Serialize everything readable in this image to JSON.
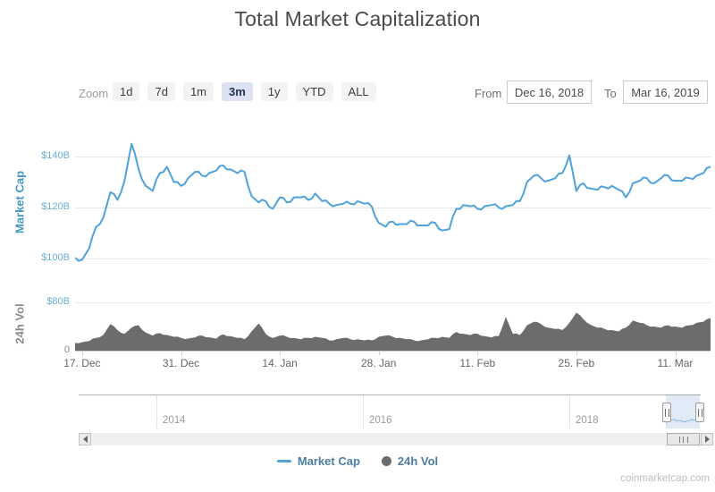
{
  "title": "Total Market Capitalization",
  "credit": "coinmarketcap.com",
  "colors": {
    "market_cap_line": "#4fa3da",
    "volume_fill": "#6c6c6c",
    "axis_label_blue": "#69aed5",
    "axis_title_blue": "#4498c5",
    "axis_label_gray": "#8a8a8a",
    "legend_text": "#4c7ea4",
    "selected_button_bg": "#dce2f3",
    "selected_button_text": "#233258",
    "navigator_selection": "#d6e2f3",
    "gridline": "#e7e7e7"
  },
  "controls": {
    "zoom_label": "Zoom",
    "buttons": [
      {
        "label": "1d",
        "selected": false
      },
      {
        "label": "7d",
        "selected": false
      },
      {
        "label": "1m",
        "selected": false
      },
      {
        "label": "3m",
        "selected": true
      },
      {
        "label": "1y",
        "selected": false
      },
      {
        "label": "YTD",
        "selected": false
      },
      {
        "label": "ALL",
        "selected": false
      }
    ],
    "from_label": "From",
    "from_value": "Dec 16, 2018",
    "to_label": "To",
    "to_value": "Mar 16, 2019"
  },
  "navigator": {
    "years": [
      "2014",
      "2016",
      "2018"
    ]
  },
  "legend": {
    "items": [
      {
        "label": "Market Cap",
        "symbol": "line"
      },
      {
        "label": "24h Vol",
        "symbol": "circle"
      }
    ]
  },
  "chart_data": {
    "type": "line+area",
    "title": "Total Market Capitalization",
    "start_date": "2018-12-16",
    "end_date": "2019-03-16",
    "interval": "1d",
    "x_ticks": [
      {
        "label": "17. Dec",
        "day": 1
      },
      {
        "label": "31. Dec",
        "day": 15
      },
      {
        "label": "14. Jan",
        "day": 29
      },
      {
        "label": "28. Jan",
        "day": 43
      },
      {
        "label": "11. Feb",
        "day": 57
      },
      {
        "label": "25. Feb",
        "day": 71
      },
      {
        "label": "11. Mar",
        "day": 85
      }
    ],
    "panes": [
      {
        "name": "Market Cap",
        "type": "line",
        "unit": "$B",
        "ylim": [
          95,
          150
        ],
        "yticks": [
          140,
          120,
          100
        ],
        "y_tick_labels": [
          "$140B",
          "$120B",
          "$100B"
        ],
        "values": [
          100.3,
          99.5,
          104,
          112.5,
          116,
          126,
          123,
          130.5,
          145,
          135,
          128.5,
          126.5,
          133.5,
          136,
          130,
          128.5,
          131.5,
          134,
          132.5,
          133.5,
          134.5,
          136.5,
          135,
          133.5,
          134,
          124.5,
          122,
          122.5,
          119.5,
          124,
          122,
          124,
          124,
          123,
          125.5,
          122.5,
          121.5,
          121,
          121.5,
          121.5,
          122.5,
          121.5,
          120.5,
          114,
          112.5,
          114.5,
          113.5,
          113.5,
          114.5,
          113,
          113,
          114,
          111,
          111.5,
          119.5,
          121,
          120.5,
          119.5,
          120.5,
          121,
          120,
          120.5,
          121,
          122.5,
          130,
          132.5,
          131.5,
          130.5,
          131.5,
          133.5,
          140.5,
          126.5,
          129.5,
          127.5,
          127,
          128,
          128.5,
          127,
          124,
          129.5,
          130.5,
          131.5,
          129.5,
          131.5,
          132.5,
          130.5,
          130.5,
          131.5,
          132.5,
          133.5,
          136
        ]
      },
      {
        "name": "24h Vol",
        "type": "area",
        "unit": "$B",
        "ylim": [
          0,
          80
        ],
        "yticks": [
          80,
          0
        ],
        "y_tick_labels": [
          "$80B",
          "0"
        ],
        "values": [
          13,
          14,
          16,
          21,
          26,
          44,
          34,
          28,
          38,
          42,
          30,
          25,
          29,
          26,
          23,
          21,
          20,
          22,
          25,
          22,
          20,
          27,
          24,
          21,
          19,
          32,
          45,
          28,
          21,
          25,
          23,
          21,
          19,
          21,
          23,
          21,
          17,
          19,
          21,
          19,
          19,
          17,
          17,
          23,
          25,
          23,
          21,
          19,
          17,
          17,
          19,
          21,
          23,
          21,
          31,
          28,
          26,
          28,
          24,
          22,
          24,
          56,
          28,
          26,
          42,
          48,
          44,
          38,
          36,
          34,
          46,
          63,
          52,
          43,
          38,
          36,
          34,
          32,
          38,
          50,
          46,
          42,
          40,
          38,
          42,
          40,
          38,
          42,
          46,
          48,
          54
        ]
      }
    ]
  }
}
